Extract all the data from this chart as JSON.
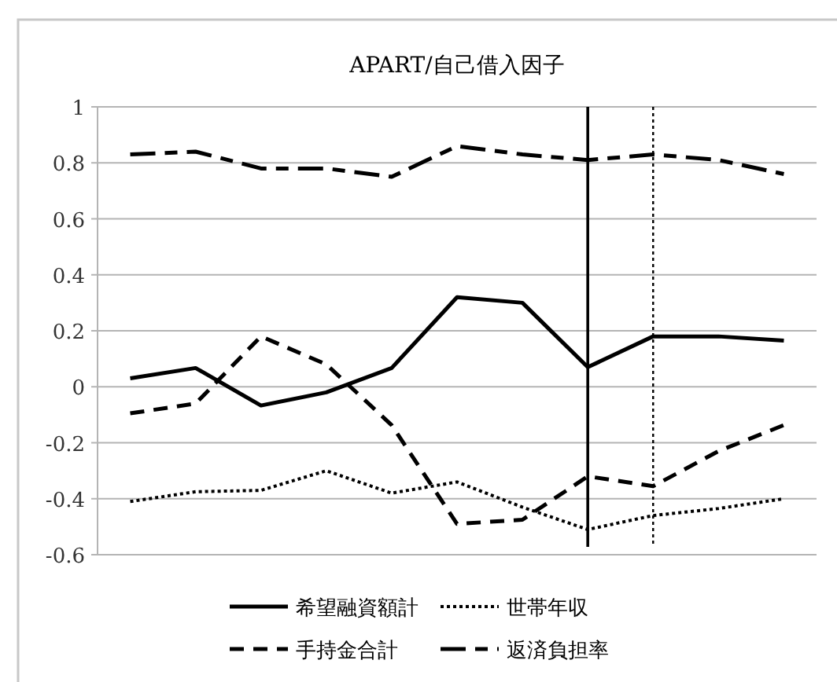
{
  "chart_data": {
    "type": "line",
    "title": "APART/自己借入因子",
    "categories": [
      null,
      null,
      null,
      null,
      null,
      null,
      null,
      null,
      null,
      null,
      null
    ],
    "ylim": [
      -0.6,
      1
    ],
    "yticks": [
      -0.6,
      -0.4,
      -0.2,
      0,
      0.2,
      0.4,
      0.6,
      0.8,
      1
    ],
    "grid": "y",
    "legend": "bottom",
    "marker": "none",
    "series": [
      {
        "name": "希望融資額計",
        "color": "#000000",
        "line_style": "solid",
        "values": [
          0.03,
          0.067,
          -0.067,
          -0.02,
          0.067,
          0.32,
          0.3,
          0.07,
          0.18,
          0.18,
          0.165
        ]
      },
      {
        "name": "世帯年収",
        "color": "#000000",
        "line_style": "dotted",
        "values": [
          -0.41,
          -0.375,
          -0.37,
          -0.3,
          -0.38,
          -0.34,
          -0.43,
          -0.51,
          -0.46,
          -0.435,
          -0.4
        ]
      },
      {
        "name": "手持金合計",
        "color": "#000000",
        "line_style": "dashed",
        "values": [
          -0.095,
          -0.06,
          0.18,
          0.08,
          -0.137,
          -0.49,
          -0.475,
          -0.32,
          -0.355,
          -0.23,
          -0.137
        ]
      },
      {
        "name": "返済負担率",
        "color": "#000000",
        "line_style": "dashdot",
        "values": [
          0.83,
          0.84,
          0.78,
          0.78,
          0.75,
          0.86,
          0.83,
          0.81,
          0.83,
          0.81,
          0.76
        ]
      }
    ]
  }
}
